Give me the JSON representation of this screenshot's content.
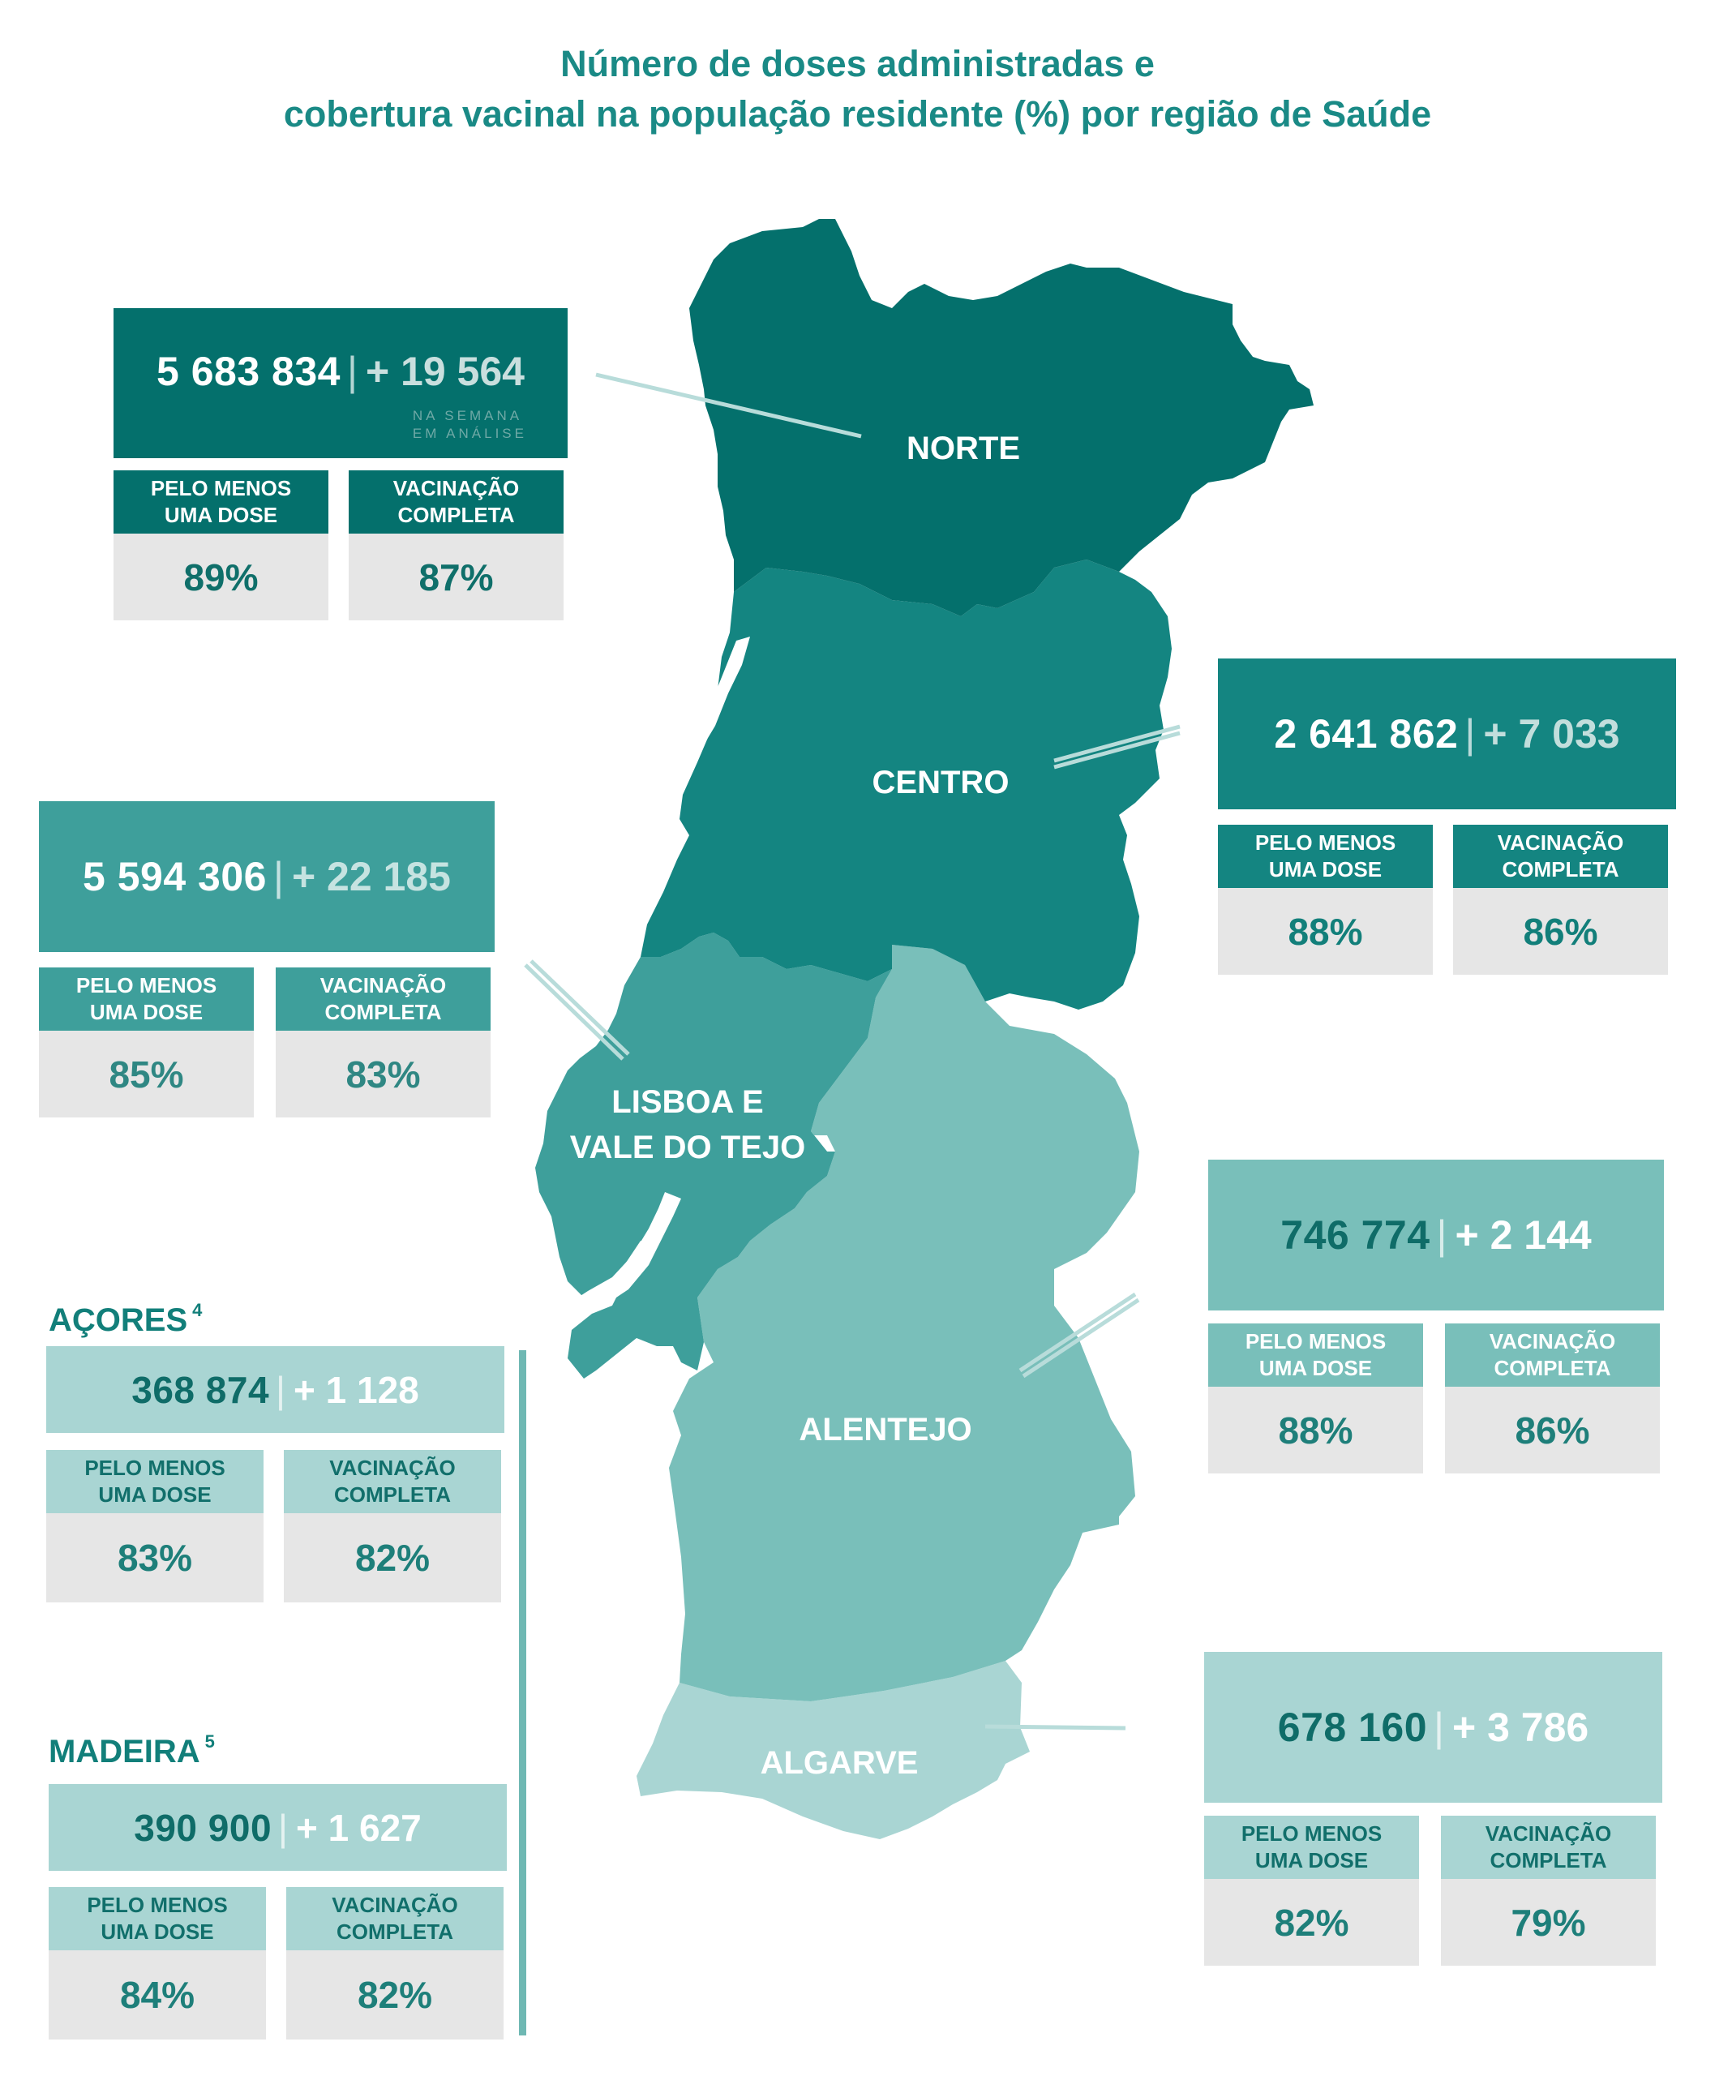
{
  "title": {
    "line1": "Número de doses administradas e",
    "line2": "cobertura vacinal na população residente (%) por região de Saúde"
  },
  "labels": {
    "at_least_one_dose": "PELO MENOS UMA DOSE",
    "complete_vaccination": "VACINAÇÃO COMPLETA",
    "week_note_1": "NA SEMANA",
    "week_note_2": "EM ANÁLISE",
    "separator": "|"
  },
  "colors": {
    "norte": "#04706c",
    "centro": "#148581",
    "lisboa_vale_tejo": "#3e9f9b",
    "alentejo": "#79bfba",
    "algarve": "#a9d5d3",
    "islands": "#a9d5d3",
    "title": "#1a8a86"
  },
  "regions": {
    "norte": {
      "name": "NORTE",
      "total": "5 683 834",
      "increment": "+ 19 564",
      "at_least_one_dose": "89%",
      "complete": "87%"
    },
    "centro": {
      "name": "CENTRO",
      "total": "2 641 862",
      "increment": "+ 7 033",
      "at_least_one_dose": "88%",
      "complete": "86%"
    },
    "lisboa_vale_tejo": {
      "name_line1": "LISBOA E",
      "name_line2": "VALE DO TEJO",
      "total": "5 594 306",
      "increment": "+ 22 185",
      "at_least_one_dose": "85%",
      "complete": "83%"
    },
    "alentejo": {
      "name": "ALENTEJO",
      "total": "746 774",
      "increment": "+ 2 144",
      "at_least_one_dose": "88%",
      "complete": "86%"
    },
    "algarve": {
      "name": "ALGARVE",
      "total": "678 160",
      "increment": "+ 3 786",
      "at_least_one_dose": "82%",
      "complete": "79%"
    },
    "acores": {
      "name": "AÇORES",
      "footnote": "4",
      "total": "368 874",
      "increment": "+ 1 128",
      "at_least_one_dose": "83%",
      "complete": "82%"
    },
    "madeira": {
      "name": "MADEIRA",
      "footnote": "5",
      "total": "390 900",
      "increment": "+ 1 627",
      "at_least_one_dose": "84%",
      "complete": "82%"
    }
  }
}
